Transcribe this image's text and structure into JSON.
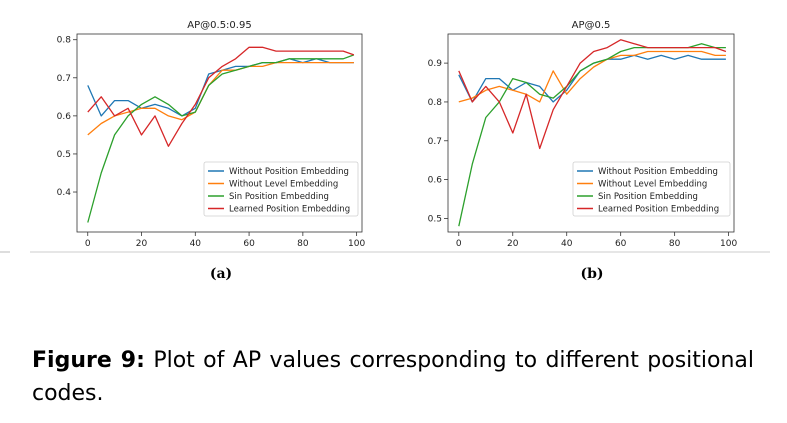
{
  "chart_data": [
    {
      "type": "line",
      "panel_label": "(a)",
      "title": "AP@0.5:0.95",
      "xlabel": "",
      "ylabel": "",
      "xlim": [
        -4,
        102
      ],
      "ylim": [
        0.295,
        0.815
      ],
      "xticks": [
        0,
        20,
        40,
        60,
        80,
        100
      ],
      "yticks": [
        0.4,
        0.5,
        0.6,
        0.7,
        0.8
      ],
      "ytick_labels": [
        "0.4",
        "0.5",
        "0.6",
        "0.7",
        "0.8"
      ],
      "grid": false,
      "legend": "bottom-right",
      "x": [
        0,
        5,
        10,
        15,
        20,
        25,
        30,
        35,
        40,
        45,
        50,
        55,
        60,
        65,
        70,
        75,
        80,
        85,
        90,
        95,
        99
      ],
      "series": [
        {
          "name": "Without Position Embedding",
          "color": "#1f77b4",
          "values": [
            0.68,
            0.6,
            0.64,
            0.64,
            0.62,
            0.63,
            0.62,
            0.6,
            0.62,
            0.71,
            0.72,
            0.73,
            0.73,
            0.74,
            0.74,
            0.75,
            0.74,
            0.75,
            0.74,
            0.74,
            0.74
          ]
        },
        {
          "name": "Without Level Embedding",
          "color": "#ff7f0e",
          "values": [
            0.55,
            0.58,
            0.6,
            0.61,
            0.62,
            0.62,
            0.6,
            0.59,
            0.61,
            0.68,
            0.72,
            0.72,
            0.73,
            0.73,
            0.74,
            0.74,
            0.74,
            0.74,
            0.74,
            0.74,
            0.74
          ]
        },
        {
          "name": "Sin Position Embedding",
          "color": "#2ca02c",
          "values": [
            0.32,
            0.45,
            0.55,
            0.6,
            0.63,
            0.65,
            0.63,
            0.6,
            0.61,
            0.68,
            0.71,
            0.72,
            0.73,
            0.74,
            0.74,
            0.75,
            0.75,
            0.75,
            0.75,
            0.75,
            0.76
          ]
        },
        {
          "name": "Learned Position Embedding",
          "color": "#d62728",
          "values": [
            0.61,
            0.65,
            0.6,
            0.62,
            0.55,
            0.6,
            0.52,
            0.58,
            0.63,
            0.7,
            0.73,
            0.75,
            0.78,
            0.78,
            0.77,
            0.77,
            0.77,
            0.77,
            0.77,
            0.77,
            0.76
          ]
        }
      ]
    },
    {
      "type": "line",
      "panel_label": "(b)",
      "title": "AP@0.5",
      "xlabel": "",
      "ylabel": "",
      "xlim": [
        -4,
        102
      ],
      "ylim": [
        0.465,
        0.975
      ],
      "xticks": [
        0,
        20,
        40,
        60,
        80,
        100
      ],
      "yticks": [
        0.5,
        0.6,
        0.7,
        0.8,
        0.9
      ],
      "ytick_labels": [
        "0.5",
        "0.6",
        "0.7",
        "0.8",
        "0.9"
      ],
      "grid": false,
      "legend": "bottom-right",
      "x": [
        0,
        5,
        10,
        15,
        20,
        25,
        30,
        35,
        40,
        45,
        50,
        55,
        60,
        65,
        70,
        75,
        80,
        85,
        90,
        95,
        99
      ],
      "series": [
        {
          "name": "Without Position Embedding",
          "color": "#1f77b4",
          "values": [
            0.87,
            0.8,
            0.86,
            0.86,
            0.83,
            0.85,
            0.84,
            0.8,
            0.83,
            0.88,
            0.9,
            0.91,
            0.91,
            0.92,
            0.91,
            0.92,
            0.91,
            0.92,
            0.91,
            0.91,
            0.91
          ]
        },
        {
          "name": "Without Level Embedding",
          "color": "#ff7f0e",
          "values": [
            0.8,
            0.81,
            0.83,
            0.84,
            0.83,
            0.82,
            0.8,
            0.88,
            0.82,
            0.86,
            0.89,
            0.91,
            0.92,
            0.92,
            0.93,
            0.93,
            0.93,
            0.93,
            0.93,
            0.92,
            0.92
          ]
        },
        {
          "name": "Sin Position Embedding",
          "color": "#2ca02c",
          "values": [
            0.48,
            0.64,
            0.76,
            0.8,
            0.86,
            0.85,
            0.82,
            0.81,
            0.84,
            0.88,
            0.9,
            0.91,
            0.93,
            0.94,
            0.94,
            0.94,
            0.94,
            0.94,
            0.95,
            0.94,
            0.94
          ]
        },
        {
          "name": "Learned Position Embedding",
          "color": "#d62728",
          "values": [
            0.88,
            0.8,
            0.84,
            0.8,
            0.72,
            0.82,
            0.68,
            0.78,
            0.84,
            0.9,
            0.93,
            0.94,
            0.96,
            0.95,
            0.94,
            0.94,
            0.94,
            0.94,
            0.94,
            0.94,
            0.93
          ]
        }
      ]
    }
  ],
  "caption": {
    "label": "Figure 9:",
    "text": "Plot of AP values corresponding to different positional codes."
  }
}
